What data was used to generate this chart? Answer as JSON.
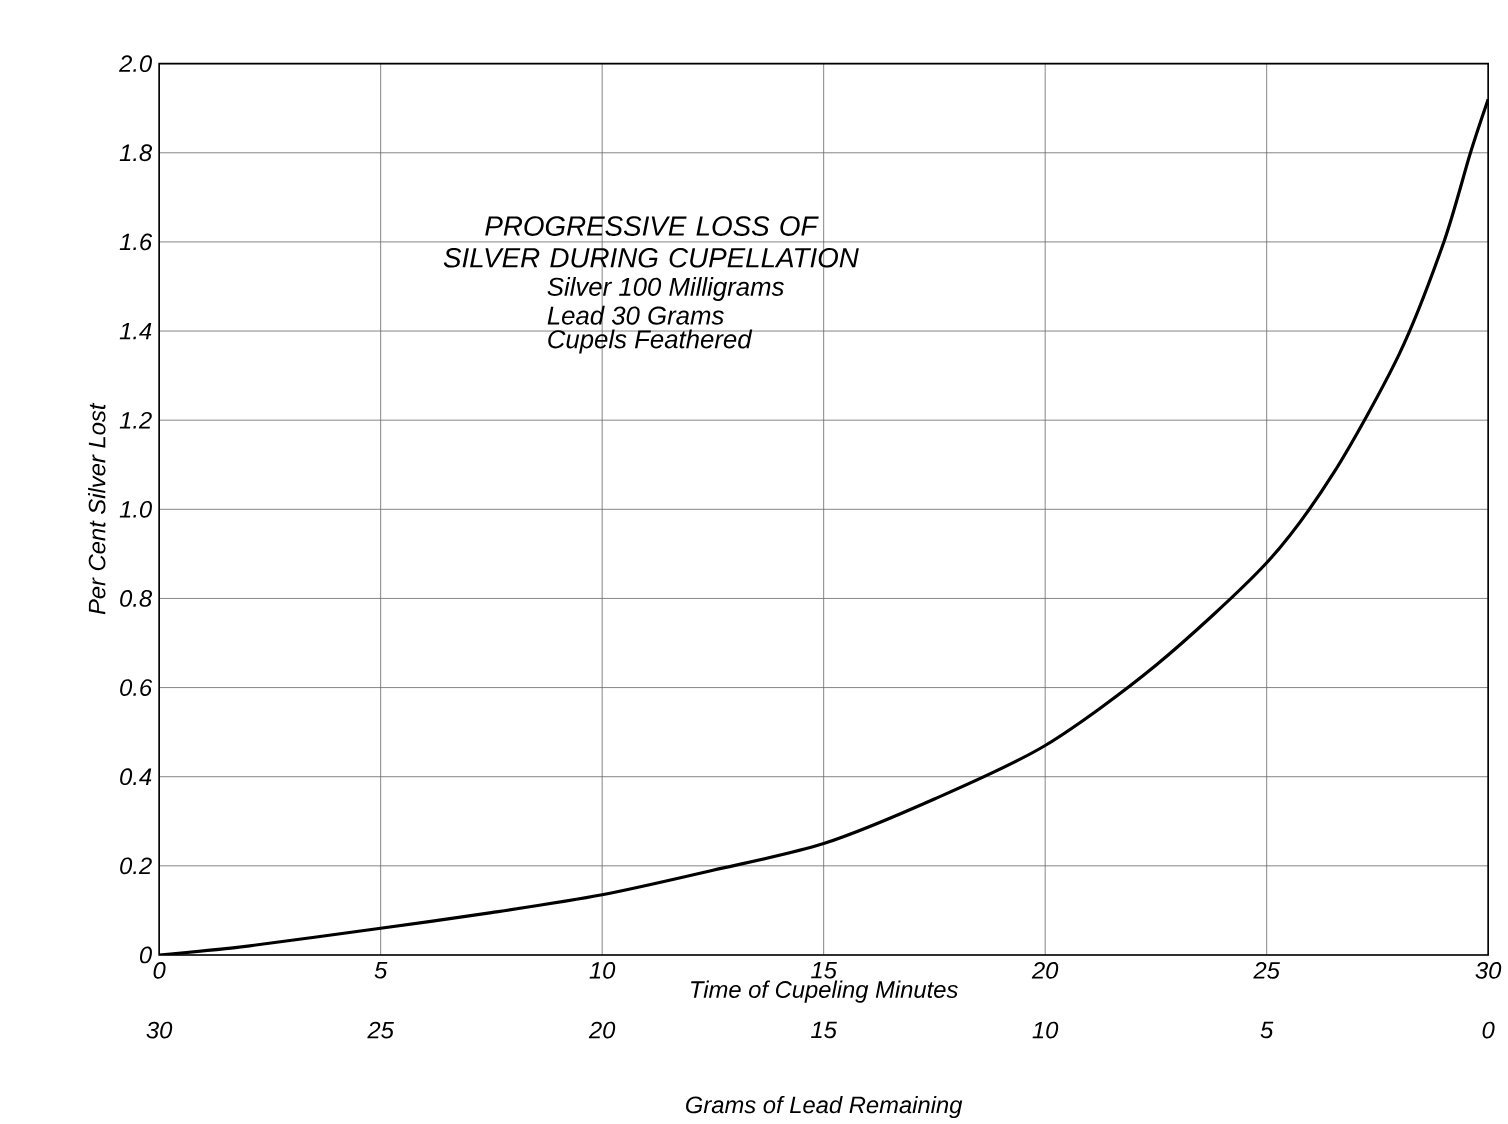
{
  "chart_data": {
    "type": "line",
    "title": "PROGRESSIVE LOSS OF SILVER DURING CUPELLATION",
    "annotations": [
      "Silver 100 Milligrams",
      "Lead 30 Grams",
      "Cupels Feathered"
    ],
    "xlabel": "Time of Cupeling Minutes",
    "ylabel": "Per Cent Silver Lost",
    "x2label": "Grams of Lead Remaining",
    "x": [
      0,
      2,
      5,
      7.5,
      10,
      12.5,
      15,
      17.5,
      20,
      22.5,
      25,
      26.5,
      28,
      29,
      29.6,
      30
    ],
    "series": [
      {
        "color": "#000000",
        "values": [
          0,
          0.02,
          0.06,
          0.095,
          0.135,
          0.19,
          0.25,
          0.35,
          0.47,
          0.65,
          0.88,
          1.08,
          1.35,
          1.6,
          1.8,
          1.92
        ]
      }
    ],
    "xlim": [
      0,
      30
    ],
    "xticks": [
      0,
      5,
      10,
      15,
      20,
      25,
      30
    ],
    "x2lim": [
      30,
      0
    ],
    "x2ticks": [
      30,
      25,
      20,
      15,
      10,
      5,
      0
    ],
    "ylim": [
      0,
      2
    ],
    "yticks": [
      0,
      0.2,
      0.4,
      0.6,
      0.8,
      {
        "value": 1,
        "label": "1.0"
      },
      1.2,
      1.4,
      1.6,
      1.8,
      {
        "value": 2,
        "label": "2.0"
      }
    ],
    "grid": true,
    "marker": "none",
    "line_style": "solid"
  }
}
